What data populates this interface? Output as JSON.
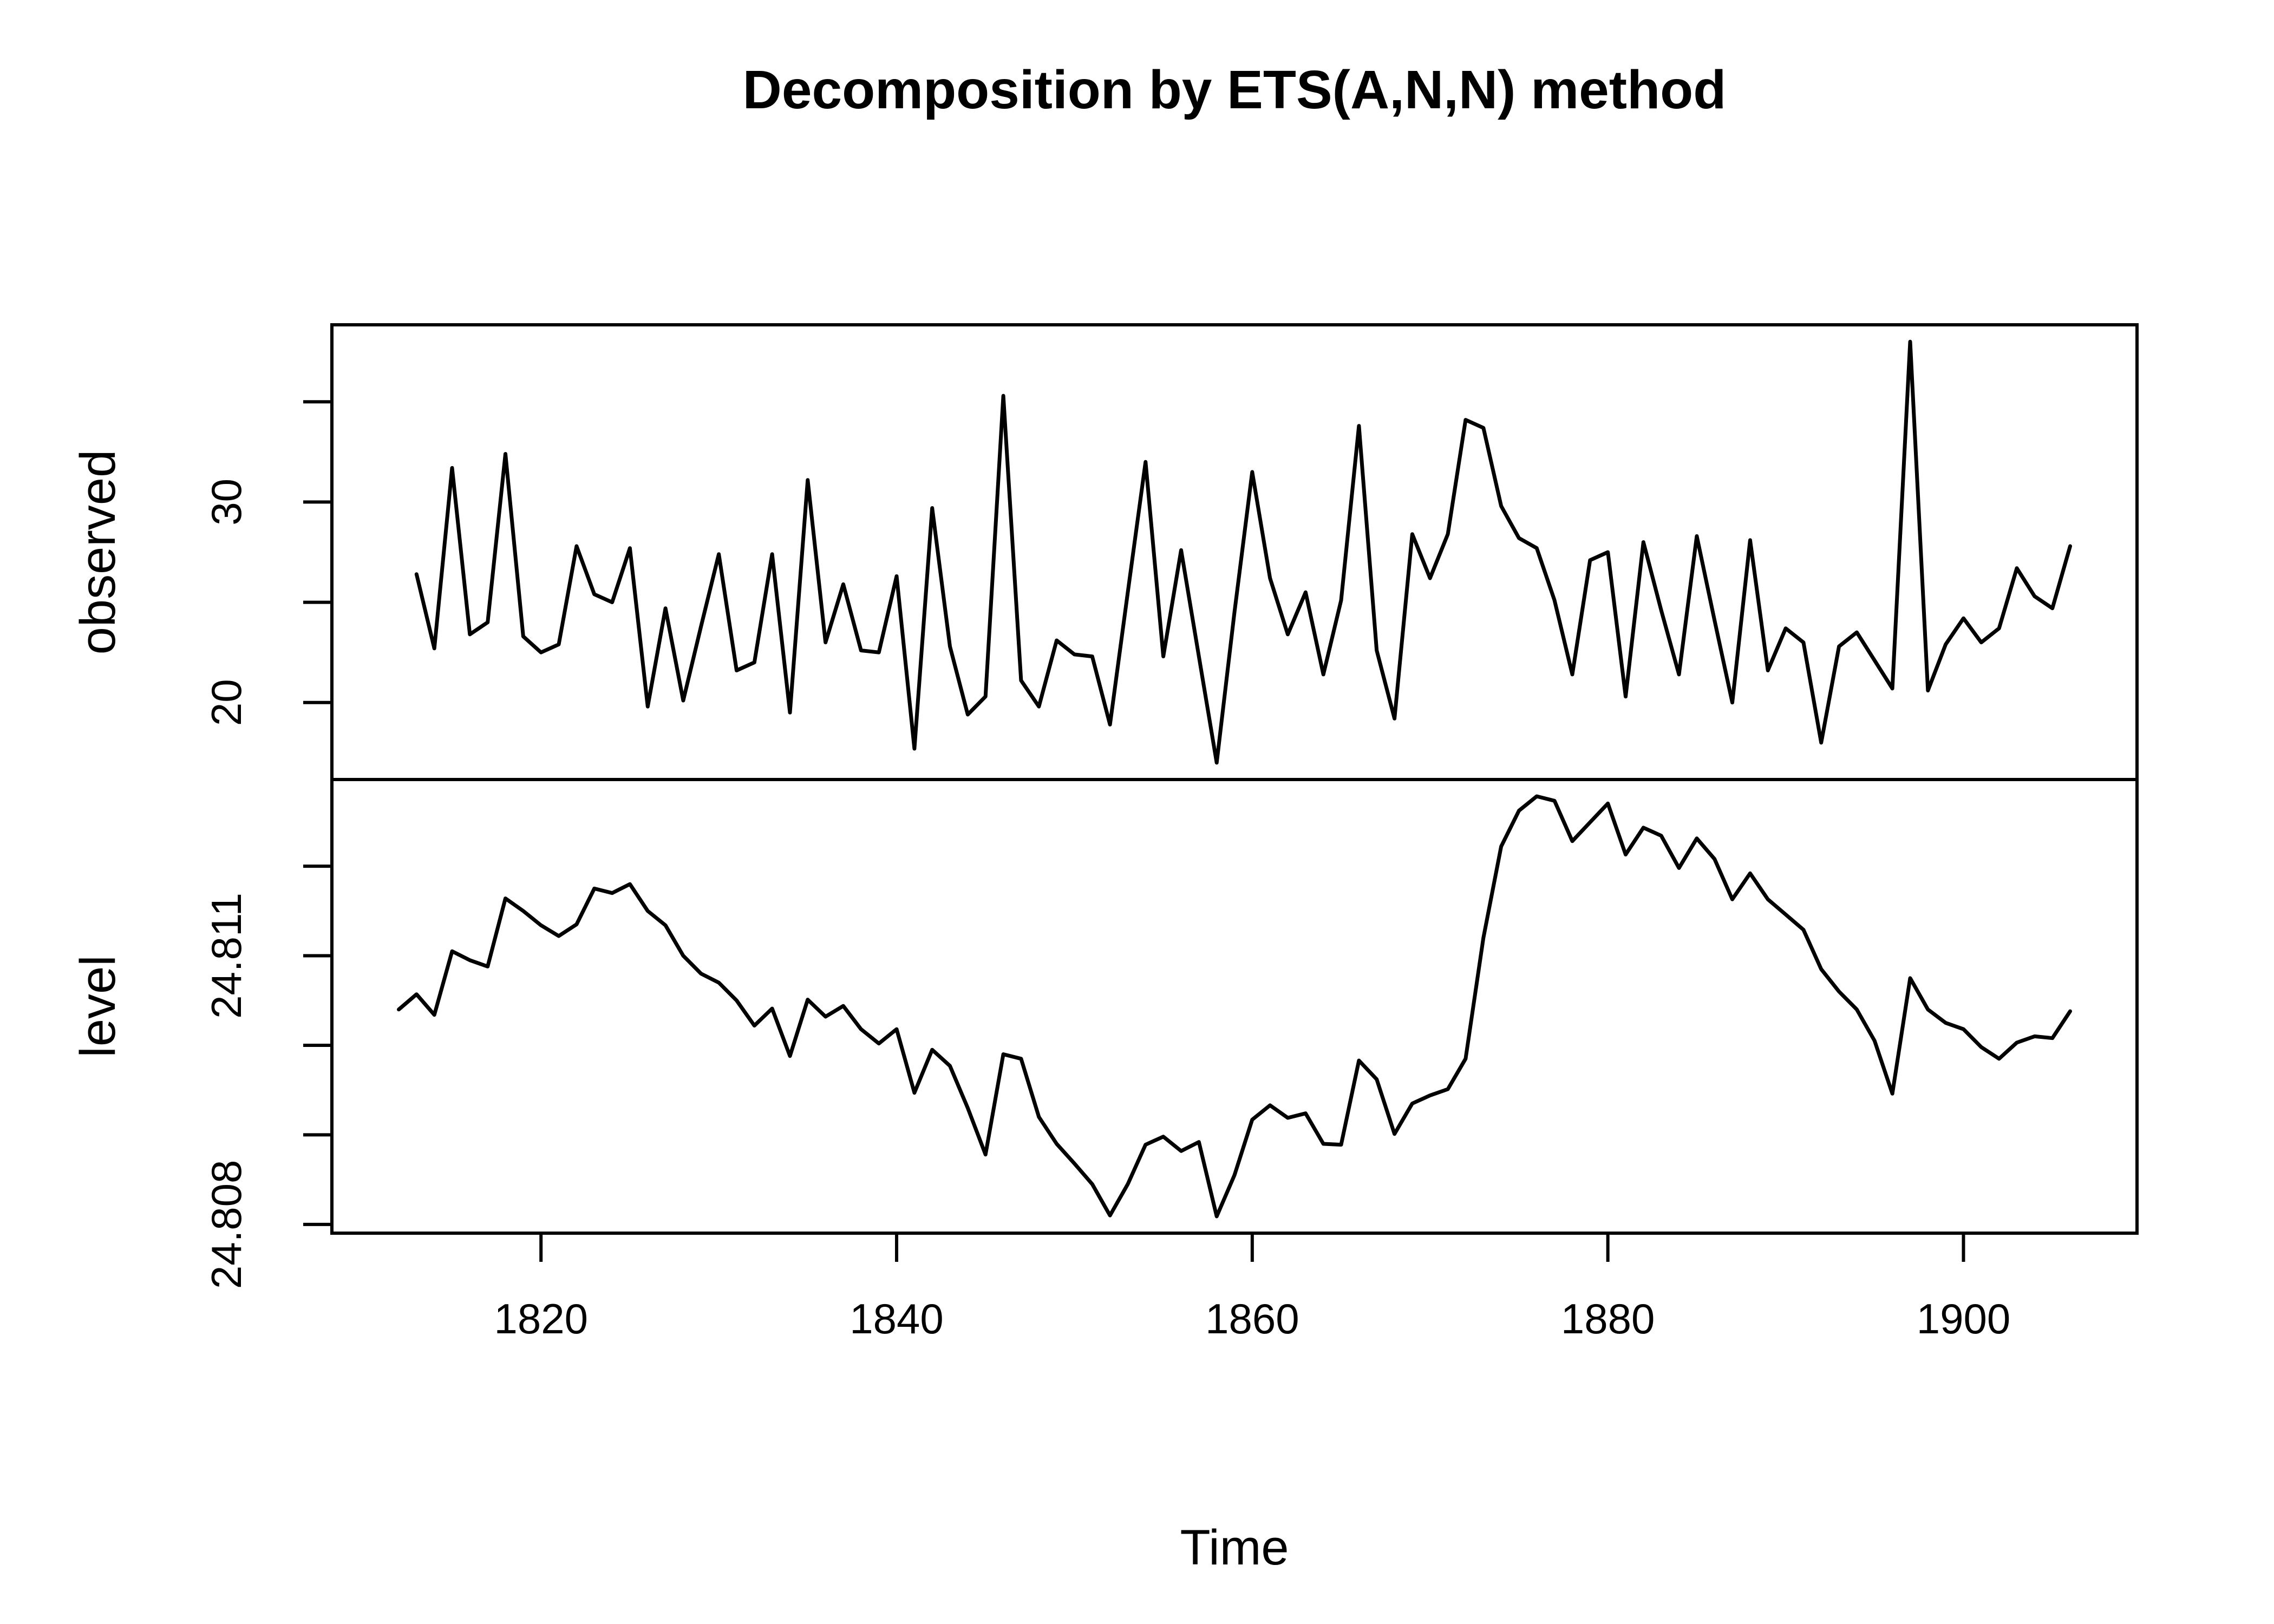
{
  "title": "Decomposition by ETS(A,N,N) method",
  "x_axis": {
    "label": "Time",
    "ticks": [
      1820,
      1840,
      1860,
      1880,
      1900
    ],
    "tick_labels": [
      "1820",
      "1840",
      "1860",
      "1880",
      "1900"
    ]
  },
  "chart_data": {
    "type": "line",
    "title": "Decomposition by ETS(A,N,N) method",
    "xlabel": "Time",
    "xlim": [
      1808.24,
      1909.76
    ],
    "x_ticks": [
      1820,
      1840,
      1860,
      1880,
      1900
    ],
    "grid": false,
    "line_color": "#000000",
    "background_color": "#ffffff",
    "panels": [
      {
        "id": "observed",
        "ylabel": "observed",
        "start_year": 1813,
        "end_year": 1906,
        "yticks": [
          20,
          25,
          30,
          35
        ],
        "ytick_labels": [
          "20",
          "",
          "30",
          ""
        ],
        "values": [
          26.4,
          22.7,
          31.7,
          23.4,
          24.0,
          32.4,
          23.3,
          22.5,
          22.9,
          27.8,
          25.4,
          25.0,
          27.7,
          19.8,
          24.7,
          20.1,
          23.8,
          27.4,
          21.6,
          22.0,
          27.4,
          19.5,
          31.1,
          23.0,
          25.9,
          22.6,
          22.5,
          26.3,
          17.7,
          29.7,
          22.8,
          19.4,
          20.3,
          35.3,
          21.1,
          19.8,
          23.1,
          22.4,
          22.3,
          18.9,
          25.5,
          32.0,
          22.3,
          27.6,
          22.3,
          17.0,
          24.5,
          31.5,
          26.2,
          23.4,
          25.5,
          21.4,
          25.1,
          33.8,
          22.6,
          19.2,
          28.4,
          26.2,
          28.4,
          34.1,
          33.7,
          29.8,
          28.2,
          27.7,
          25.1,
          21.4,
          27.1,
          27.5,
          20.3,
          28.0,
          24.6,
          21.4,
          28.3,
          24.1,
          20.0,
          28.1,
          21.6,
          23.7,
          23.0,
          18.0,
          22.8,
          23.5,
          22.1,
          20.7,
          38.0,
          20.6,
          22.9,
          24.2,
          23.0,
          23.7,
          26.7,
          25.3,
          24.7,
          27.8
        ]
      },
      {
        "id": "level",
        "ylabel": "level",
        "start_year": 1812,
        "end_year": 1906,
        "yticks": [
          24.808,
          24.809,
          24.81,
          24.811,
          24.812
        ],
        "ytick_labels": [
          "24.808",
          "",
          "",
          "24.811",
          ""
        ],
        "values": [
          24.8104,
          24.81057,
          24.81034,
          24.81105,
          24.81095,
          24.81088,
          24.81164,
          24.8115,
          24.81134,
          24.81122,
          24.81135,
          24.81175,
          24.8117,
          24.8118,
          24.8115,
          24.81134,
          24.811,
          24.8108,
          24.8107,
          24.8105,
          24.81022,
          24.81041,
          24.80988,
          24.81051,
          24.81032,
          24.81044,
          24.81018,
          24.81002,
          24.81018,
          24.80947,
          24.80995,
          24.80977,
          24.8093,
          24.80878,
          24.8099,
          24.80985,
          24.8092,
          24.8089,
          24.80868,
          24.80845,
          24.8081,
          24.80845,
          24.80889,
          24.80898,
          24.80882,
          24.80892,
          24.80809,
          24.80855,
          24.80917,
          24.80933,
          24.80919,
          24.80924,
          24.8089,
          24.80889,
          24.80983,
          24.80962,
          24.80901,
          24.80935,
          24.80944,
          24.80951,
          24.80985,
          24.8112,
          24.81222,
          24.81262,
          24.81278,
          24.81273,
          24.81228,
          24.81249,
          24.8127,
          24.81213,
          24.81243,
          24.81234,
          24.81198,
          24.81231,
          24.81208,
          24.81163,
          24.81192,
          24.81163,
          24.81146,
          24.81129,
          24.81085,
          24.8106,
          24.8104,
          24.81005,
          24.80946,
          24.81075,
          24.8104,
          24.81025,
          24.81018,
          24.80998,
          24.80985,
          24.81003,
          24.8101,
          24.81008,
          24.81038
        ]
      }
    ]
  }
}
